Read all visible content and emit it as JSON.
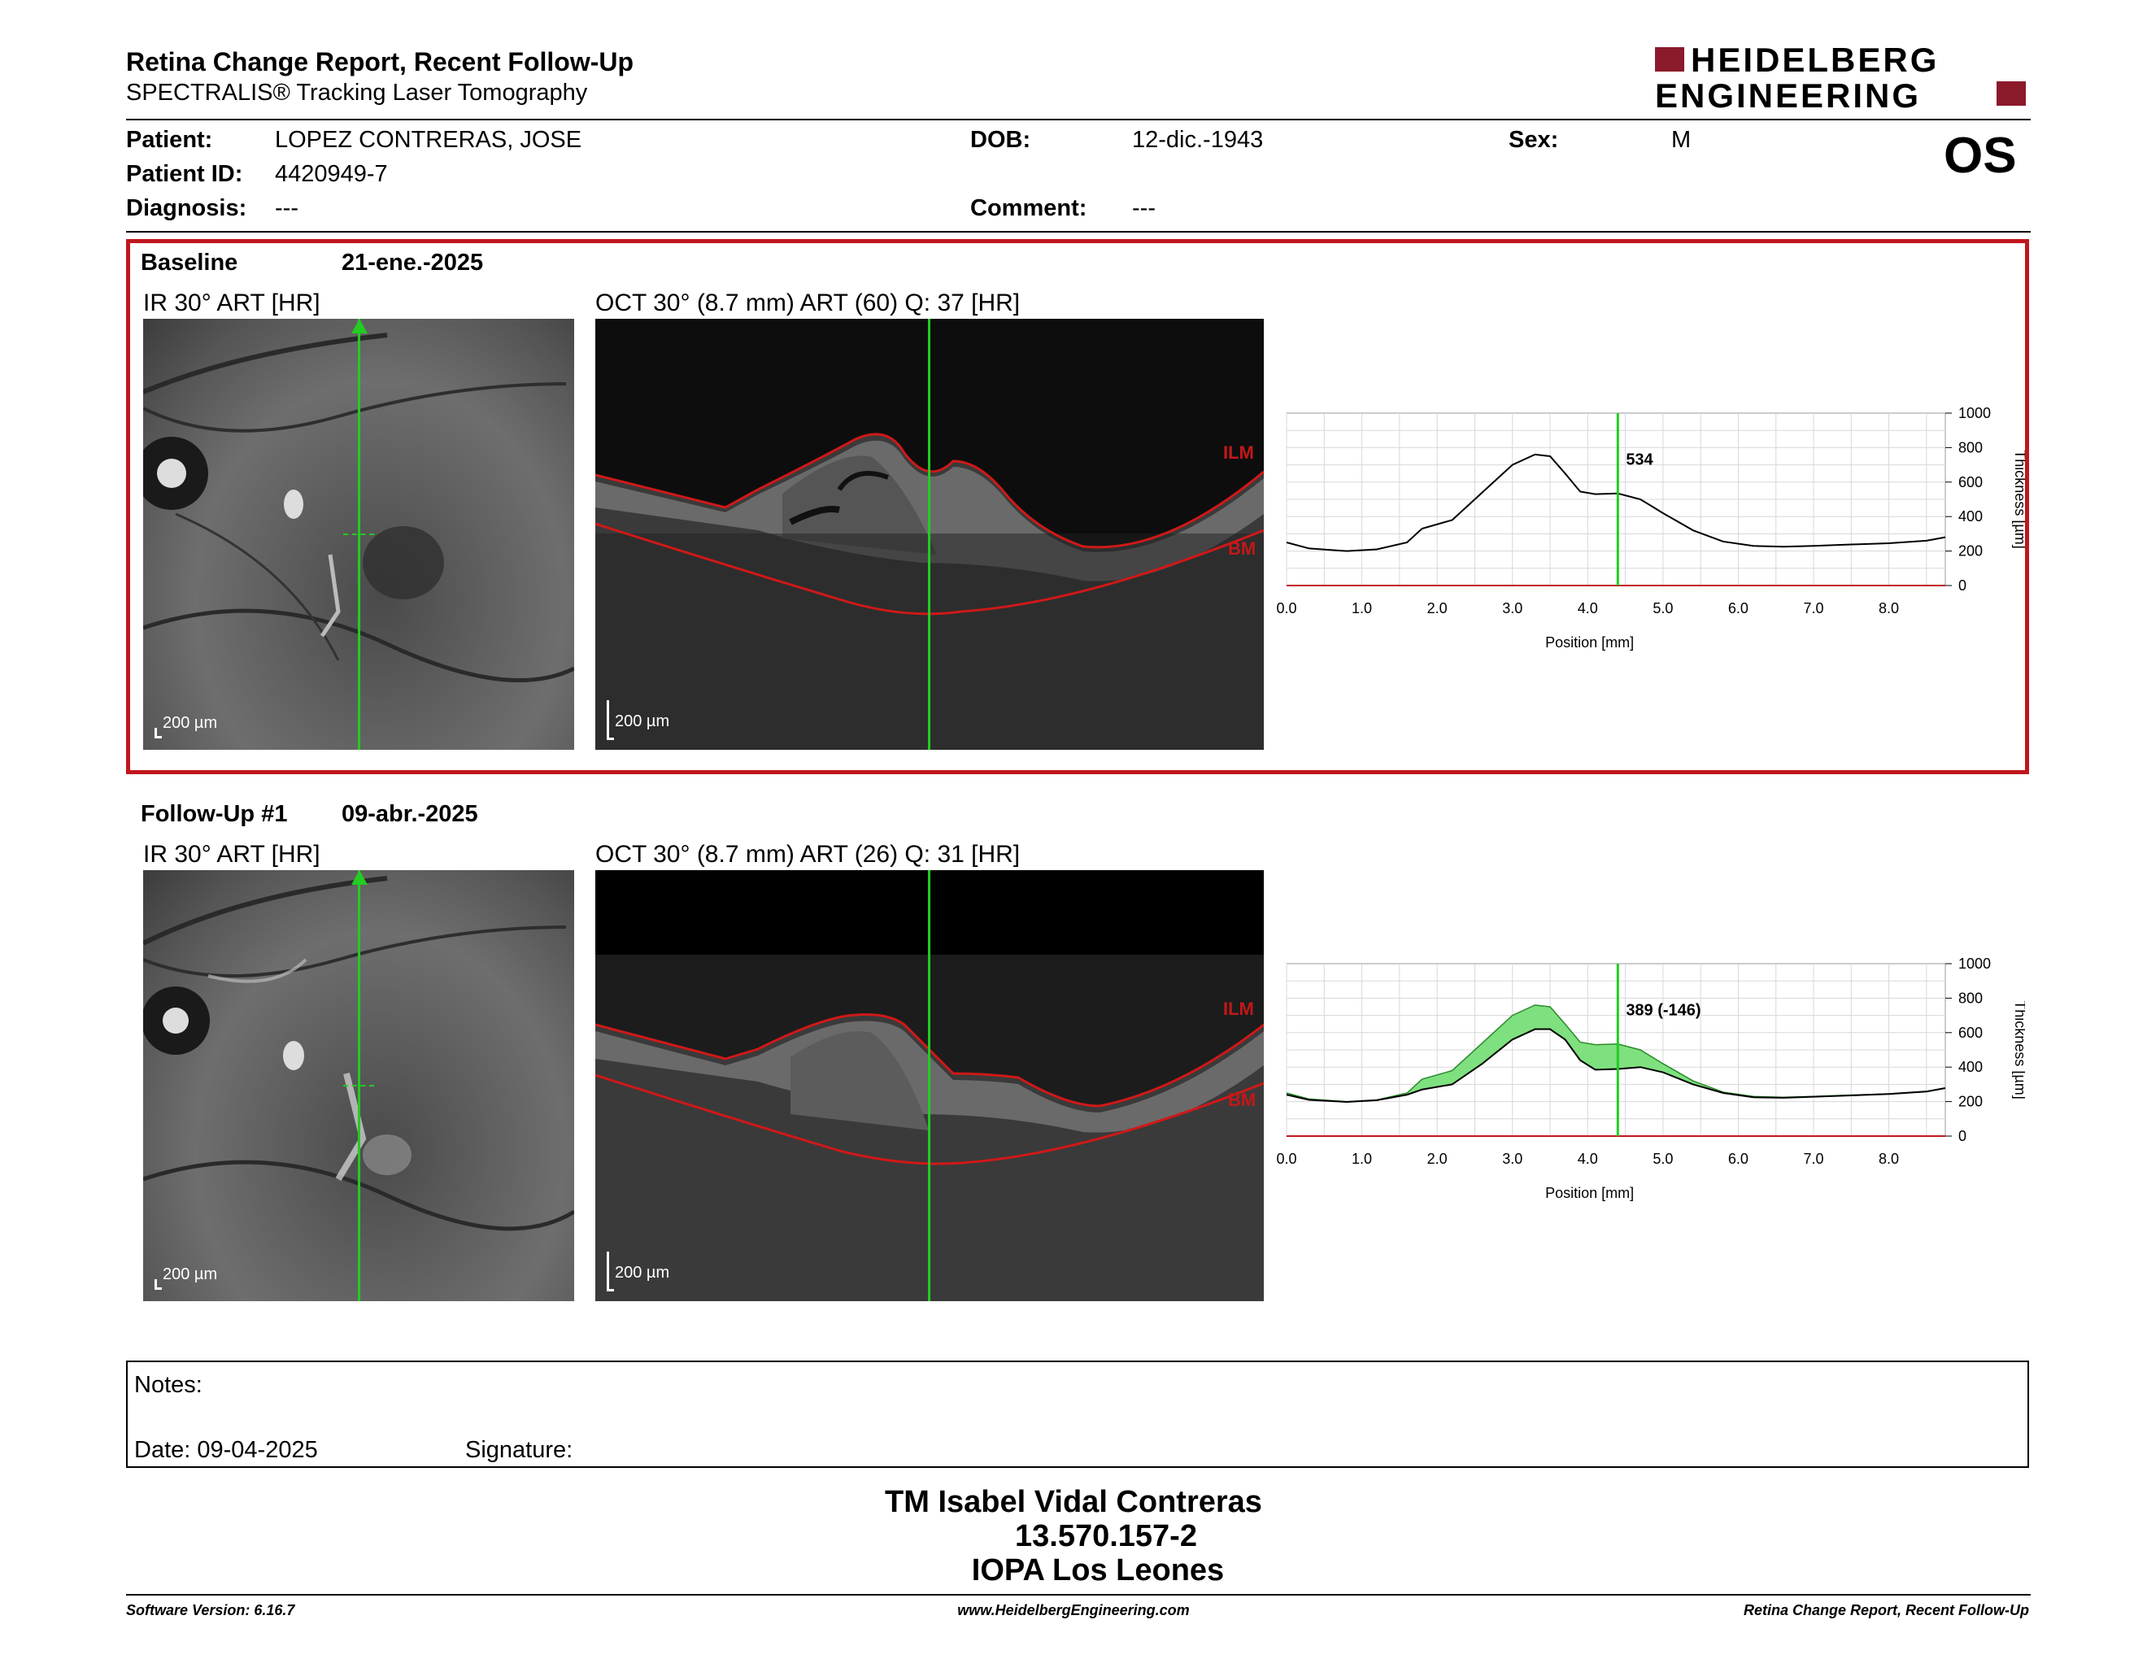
{
  "header": {
    "title": "Retina Change Report, Recent Follow-Up",
    "subtitle": "SPECTRALIS® Tracking Laser Tomography",
    "logo_line1": "HEIDELBERG",
    "logo_line2": "ENGINEERING",
    "eye": "OS"
  },
  "patient": {
    "patient_label": "Patient:",
    "patient_value": "LOPEZ CONTRERAS, JOSE",
    "dob_label": "DOB:",
    "dob_value": "12-dic.-1943",
    "sex_label": "Sex:",
    "sex_value": "M",
    "id_label": "Patient ID:",
    "id_value": "4420949-7",
    "diagnosis_label": "Diagnosis:",
    "diagnosis_value": "---",
    "comment_label": "Comment:",
    "comment_value": "---"
  },
  "baseline": {
    "label": "Baseline",
    "date": "21-ene.-2025",
    "ir_title": "IR 30° ART [HR]",
    "oct_title": "OCT 30° (8.7 mm) ART (60) Q: 37 [HR]",
    "scale_label": "200 µm",
    "ilm": "ILM",
    "bm": "BM",
    "marker_value": "534"
  },
  "followup": {
    "label": "Follow-Up #1",
    "date": "09-abr.-2025",
    "ir_title": "IR 30° ART [HR]",
    "oct_title": "OCT 30° (8.7 mm) ART (26) Q: 31 [HR]",
    "scale_label": "200 µm",
    "ilm": "ILM",
    "bm": "BM",
    "marker_value": "389 (-146)"
  },
  "notes": {
    "label": "Notes:",
    "date_label": "Date: 09-04-2025",
    "signature_label": "Signature:"
  },
  "signature_block": {
    "line1": "TM Isabel Vidal Contreras",
    "line2": "13.570.157-2",
    "line3": "IOPA Los Leones"
  },
  "footer": {
    "left": "Software Version: 6.16.7",
    "center": "www.HeidelbergEngineering.com",
    "right": "Retina Change Report, Recent Follow-Up"
  },
  "colors": {
    "accent_red": "#c0161d",
    "logo_red": "#8b1a2b",
    "marker_green": "#22cc22",
    "diff_fill": "#7ee07e"
  },
  "chart_data": [
    {
      "type": "line",
      "xlabel": "Position [mm]",
      "ylabel": "Thickness [µm]",
      "xlim": [
        0,
        8.75
      ],
      "ylim": [
        0,
        1000
      ],
      "xticks": [
        "0.0",
        "1.0",
        "2.0",
        "3.0",
        "4.0",
        "5.0",
        "6.0",
        "7.0",
        "8.0"
      ],
      "yticks": [
        "0",
        "200",
        "400",
        "600",
        "800",
        "1000"
      ],
      "grid": true,
      "marker_x": 4.4,
      "series": [
        {
          "x": [
            0,
            0.3,
            0.8,
            1.2,
            1.6,
            1.8,
            2.2,
            2.6,
            3.0,
            3.3,
            3.5,
            3.7,
            3.9,
            4.1,
            4.4,
            4.7,
            5.0,
            5.4,
            5.8,
            6.2,
            6.6,
            7.0,
            7.5,
            8.0,
            8.5,
            8.75
          ],
          "values": [
            250,
            215,
            200,
            210,
            250,
            330,
            380,
            540,
            700,
            760,
            750,
            650,
            545,
            530,
            534,
            500,
            420,
            320,
            255,
            230,
            225,
            230,
            238,
            245,
            260,
            280
          ]
        }
      ]
    },
    {
      "type": "area",
      "xlabel": "Position [mm]",
      "ylabel": "Thickness [µm]",
      "xlim": [
        0,
        8.75
      ],
      "ylim": [
        0,
        1000
      ],
      "xticks": [
        "0.0",
        "1.0",
        "2.0",
        "3.0",
        "4.0",
        "5.0",
        "6.0",
        "7.0",
        "8.0"
      ],
      "yticks": [
        "0",
        "200",
        "400",
        "600",
        "800",
        "1000"
      ],
      "grid": true,
      "marker_x": 4.4,
      "series": [
        {
          "x": [
            0,
            0.3,
            0.8,
            1.2,
            1.6,
            1.8,
            2.2,
            2.6,
            3.0,
            3.3,
            3.5,
            3.7,
            3.9,
            4.1,
            4.4,
            4.7,
            5.0,
            5.4,
            5.8,
            6.2,
            6.6,
            7.0,
            7.5,
            8.0,
            8.5,
            8.75
          ],
          "values": [
            250,
            215,
            200,
            210,
            250,
            330,
            380,
            540,
            700,
            760,
            750,
            650,
            545,
            530,
            534,
            500,
            420,
            320,
            255,
            230,
            225,
            230,
            238,
            245,
            260,
            280
          ]
        },
        {
          "x": [
            0,
            0.3,
            0.8,
            1.2,
            1.6,
            1.8,
            2.2,
            2.6,
            3.0,
            3.3,
            3.5,
            3.7,
            3.9,
            4.1,
            4.4,
            4.7,
            5.0,
            5.4,
            5.8,
            6.2,
            6.6,
            7.0,
            7.5,
            8.0,
            8.5,
            8.75
          ],
          "values": [
            240,
            210,
            198,
            208,
            240,
            270,
            300,
            420,
            560,
            620,
            620,
            560,
            440,
            385,
            389,
            400,
            370,
            300,
            250,
            225,
            222,
            228,
            236,
            244,
            258,
            278
          ]
        }
      ]
    }
  ]
}
